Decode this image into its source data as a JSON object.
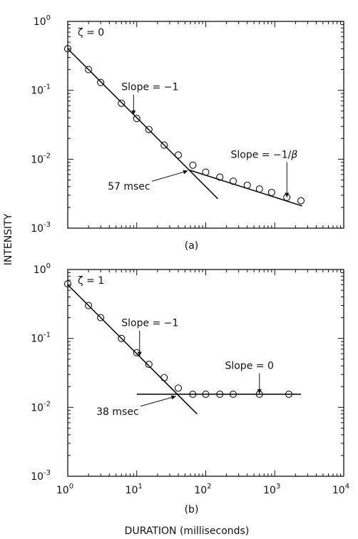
{
  "xlabel": "DURATION (milliseconds)",
  "ylabel": "INTENSITY",
  "chart_data": [
    {
      "type": "scatter",
      "caption": "(a)",
      "param_label": "ζ = 0",
      "xscale": "log",
      "yscale": "log",
      "xlim": [
        1,
        10000
      ],
      "ylim": [
        0.001,
        1
      ],
      "x_ticks": [
        {
          "base": "10",
          "exp": "0"
        },
        {
          "base": "10",
          "exp": "1"
        },
        {
          "base": "10",
          "exp": "2"
        },
        {
          "base": "10",
          "exp": "3"
        },
        {
          "base": "10",
          "exp": "4"
        }
      ],
      "y_ticks": [
        {
          "base": "10",
          "exp": "-3"
        },
        {
          "base": "10",
          "exp": "-2"
        },
        {
          "base": "10",
          "exp": "-1"
        },
        {
          "base": "10",
          "exp": "0"
        }
      ],
      "points": [
        [
          1,
          0.4
        ],
        [
          2,
          0.2
        ],
        [
          3,
          0.13
        ],
        [
          6,
          0.065
        ],
        [
          10,
          0.039
        ],
        [
          15,
          0.027
        ],
        [
          25,
          0.016
        ],
        [
          40,
          0.0115
        ],
        [
          65,
          0.0082
        ],
        [
          100,
          0.0065
        ],
        [
          160,
          0.0055
        ],
        [
          250,
          0.0048
        ],
        [
          400,
          0.0042
        ],
        [
          600,
          0.0037
        ],
        [
          900,
          0.0033
        ],
        [
          1500,
          0.0028
        ],
        [
          2400,
          0.0025
        ]
      ],
      "fit_lines": [
        {
          "from": [
            1,
            0.4
          ],
          "to": [
            150,
            0.00267
          ]
        },
        {
          "from": [
            57,
            0.007
          ],
          "to": [
            2500,
            0.0021
          ]
        }
      ],
      "annotations": [
        {
          "id": "slope1",
          "text": "Slope = −1",
          "x": 6,
          "y": 0.1,
          "arrow_to": [
            9,
            0.044
          ]
        },
        {
          "id": "slope2",
          "prefix": "Slope = −1/",
          "beta": "β",
          "x": 230,
          "y": 0.0105,
          "arrow_to": [
            1500,
            0.0028
          ]
        },
        {
          "id": "break",
          "text": "57 msec",
          "x": 3.8,
          "y": 0.0036,
          "arrow_to": [
            55,
            0.0068
          ]
        }
      ]
    },
    {
      "type": "scatter",
      "caption": "(b)",
      "param_label": "ζ = 1",
      "xscale": "log",
      "yscale": "log",
      "xlim": [
        1,
        10000
      ],
      "ylim": [
        0.001,
        1
      ],
      "x_ticks": [
        {
          "base": "10",
          "exp": "0"
        },
        {
          "base": "10",
          "exp": "1"
        },
        {
          "base": "10",
          "exp": "2"
        },
        {
          "base": "10",
          "exp": "3"
        },
        {
          "base": "10",
          "exp": "4"
        }
      ],
      "y_ticks": [
        {
          "base": "10",
          "exp": "-3"
        },
        {
          "base": "10",
          "exp": "-2"
        },
        {
          "base": "10",
          "exp": "-1"
        },
        {
          "base": "10",
          "exp": "0"
        }
      ],
      "points": [
        [
          1,
          0.62
        ],
        [
          2,
          0.3
        ],
        [
          3,
          0.2
        ],
        [
          6,
          0.1
        ],
        [
          10,
          0.062
        ],
        [
          15,
          0.042
        ],
        [
          25,
          0.027
        ],
        [
          40,
          0.019
        ],
        [
          65,
          0.0155
        ],
        [
          100,
          0.0155
        ],
        [
          160,
          0.0155
        ],
        [
          250,
          0.0155
        ],
        [
          600,
          0.0155
        ],
        [
          1600,
          0.0155
        ]
      ],
      "fit_lines": [
        {
          "from": [
            1,
            0.6
          ],
          "to": [
            75,
            0.008
          ]
        },
        {
          "from": [
            10,
            0.0155
          ],
          "to": [
            2400,
            0.0155
          ]
        }
      ],
      "annotations": [
        {
          "id": "slope1",
          "text": "Slope = −1",
          "x": 6,
          "y": 0.15,
          "arrow_to": [
            11,
            0.055
          ]
        },
        {
          "id": "slope0",
          "text": "Slope = 0",
          "x": 190,
          "y": 0.036,
          "arrow_to": [
            600,
            0.0158
          ]
        },
        {
          "id": "break",
          "text": "38 msec",
          "x": 2.6,
          "y": 0.0078,
          "arrow_to": [
            37,
            0.0145
          ]
        }
      ]
    }
  ]
}
